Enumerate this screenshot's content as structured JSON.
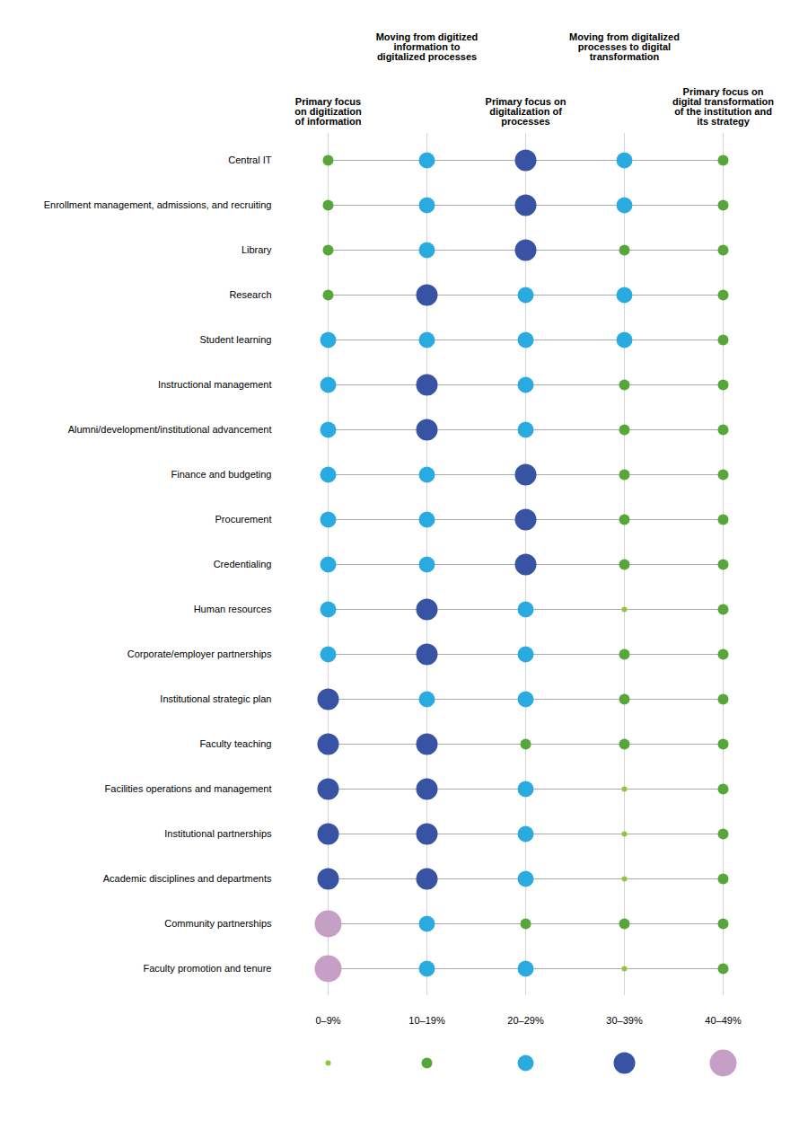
{
  "chart_data": {
    "type": "dot_matrix",
    "categories": [
      "Central IT",
      "Enrollment management, admissions, and recruiting",
      "Library",
      "Research",
      "Student learning",
      "Instructional management",
      "Alumni/development/institutional advancement",
      "Finance and budgeting",
      "Procurement",
      "Credentialing",
      "Human resources",
      "Corporate/employer partnerships",
      "Institutional strategic plan",
      "Faculty teaching",
      "Facilities operations and management",
      "Institutional partnerships",
      "Academic disciplines and departments",
      "Community partnerships",
      "Faculty promotion and tenure"
    ],
    "columns": [
      "Primary focus\non digitization\nof information",
      "Moving from digitized\ninformation to\ndigitalized processes",
      "Primary focus on\ndigitalization of\nprocesses",
      "Moving from digitalized\nprocesses to digital\ntransformation",
      "Primary focus on\ndigital transformation\nof the institution and\nits strategy"
    ],
    "values": [
      [
        1,
        2,
        3,
        2,
        1
      ],
      [
        1,
        2,
        3,
        2,
        1
      ],
      [
        1,
        2,
        3,
        1,
        1
      ],
      [
        1,
        3,
        2,
        2,
        1
      ],
      [
        2,
        2,
        2,
        2,
        1
      ],
      [
        2,
        3,
        2,
        1,
        1
      ],
      [
        2,
        3,
        2,
        1,
        1
      ],
      [
        2,
        2,
        3,
        1,
        1
      ],
      [
        2,
        2,
        3,
        1,
        1
      ],
      [
        2,
        2,
        3,
        1,
        1
      ],
      [
        2,
        3,
        2,
        0,
        1
      ],
      [
        2,
        3,
        2,
        1,
        1
      ],
      [
        3,
        2,
        2,
        1,
        1
      ],
      [
        3,
        3,
        1,
        1,
        1
      ],
      [
        3,
        3,
        2,
        0,
        1
      ],
      [
        3,
        3,
        2,
        0,
        1
      ],
      [
        3,
        3,
        2,
        0,
        1
      ],
      [
        4,
        2,
        1,
        1,
        1
      ],
      [
        4,
        2,
        2,
        0,
        1
      ]
    ],
    "series": [
      {
        "name": "0–9%",
        "color": "#8dc63f",
        "value": 0
      },
      {
        "name": "10–19%",
        "color": "#57a639",
        "value": 1
      },
      {
        "name": "20–29%",
        "color": "#29abe2",
        "value": 2
      },
      {
        "name": "30–39%",
        "color": "#3953a4",
        "value": 3
      },
      {
        "name": "40–49%",
        "color": "#c59fc5",
        "value": 4
      }
    ],
    "legend": "bottom"
  }
}
